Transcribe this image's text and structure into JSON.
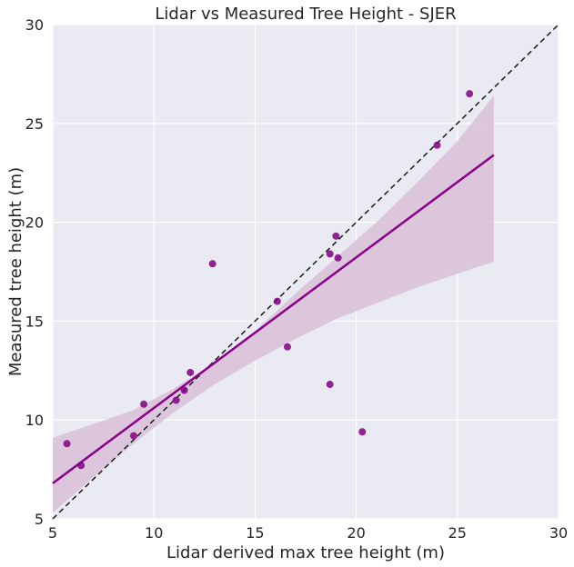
{
  "chart_data": {
    "type": "scatter",
    "title": "Lidar vs Measured Tree Height - SJER",
    "xlabel": "Lidar derived max tree height (m)",
    "ylabel": "Measured tree height (m)",
    "xlim": [
      5,
      30
    ],
    "ylim": [
      5,
      30
    ],
    "xticks": [
      "5",
      "10",
      "15",
      "20",
      "25",
      "30"
    ],
    "yticks": [
      "5",
      "10",
      "15",
      "20",
      "25",
      "30"
    ],
    "grid": true,
    "colors": {
      "background": "#eaeaf2",
      "grid": "#ffffff",
      "points": "#800080",
      "fit_line": "#8b008b",
      "confidence_band": "#d8bfd8",
      "reference_line": "#1a1a1a"
    },
    "points": [
      {
        "x": 5.7,
        "y": 8.8
      },
      {
        "x": 6.4,
        "y": 7.7
      },
      {
        "x": 9.0,
        "y": 9.2
      },
      {
        "x": 9.5,
        "y": 10.8
      },
      {
        "x": 11.1,
        "y": 11.0
      },
      {
        "x": 11.5,
        "y": 11.5
      },
      {
        "x": 11.8,
        "y": 12.4
      },
      {
        "x": 12.9,
        "y": 17.9
      },
      {
        "x": 16.1,
        "y": 16.0
      },
      {
        "x": 16.6,
        "y": 13.7
      },
      {
        "x": 18.7,
        "y": 11.8
      },
      {
        "x": 18.7,
        "y": 18.4
      },
      {
        "x": 19.0,
        "y": 19.3
      },
      {
        "x": 19.1,
        "y": 18.2
      },
      {
        "x": 20.3,
        "y": 9.4
      },
      {
        "x": 24.0,
        "y": 23.9
      },
      {
        "x": 25.6,
        "y": 26.5
      }
    ],
    "fit_line": {
      "x": [
        5.0,
        26.8
      ],
      "y": [
        6.8,
        23.4
      ]
    },
    "confidence_band": {
      "x": [
        5.0,
        7.0,
        9.0,
        11.0,
        13.0,
        15.0,
        17.0,
        19.0,
        21.0,
        23.0,
        25.0,
        26.8
      ],
      "lower": [
        5.3,
        7.1,
        8.8,
        10.4,
        11.8,
        13.0,
        14.1,
        15.1,
        15.9,
        16.7,
        17.4,
        18.0
      ],
      "upper": [
        9.1,
        9.8,
        10.5,
        11.6,
        12.9,
        14.5,
        16.4,
        18.2,
        20.0,
        22.0,
        24.1,
        26.4
      ]
    },
    "reference_line": {
      "x": [
        5,
        30
      ],
      "y": [
        5,
        30
      ],
      "style": "dashed"
    }
  }
}
